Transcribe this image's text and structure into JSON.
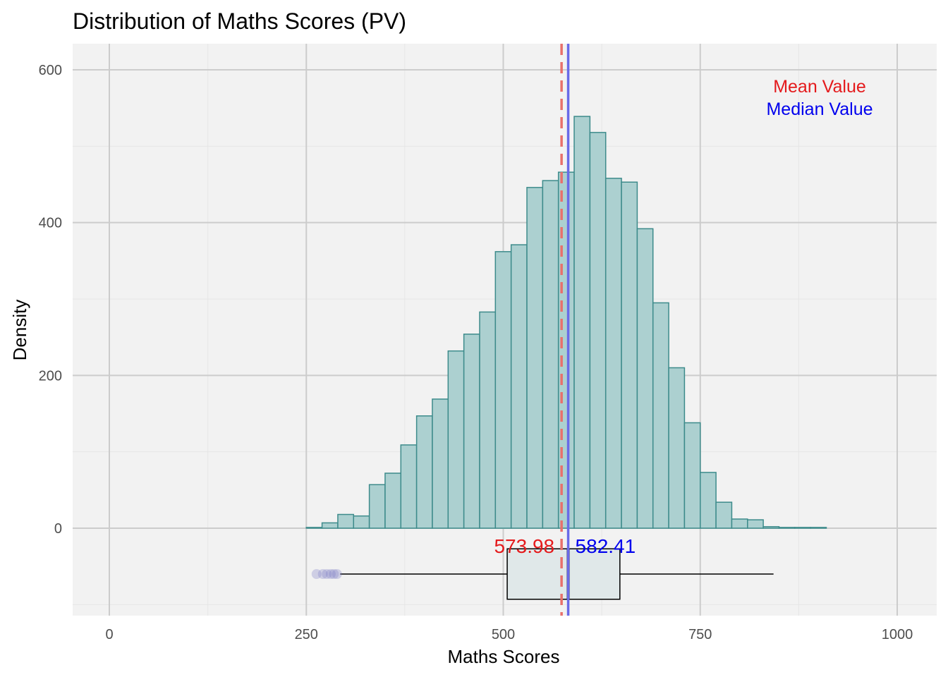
{
  "chart_data": {
    "type": "histogram",
    "title": "Distribution of Maths Scores (PV)",
    "xlabel": "Maths Scores",
    "ylabel": "Density",
    "xlim": [
      -25,
      1025
    ],
    "ylim": [
      -110,
      632
    ],
    "x_ticks": [
      0,
      250,
      500,
      750,
      1000
    ],
    "y_ticks": [
      0,
      200,
      400,
      600
    ],
    "grid": true,
    "bin_width": 20,
    "bins": [
      {
        "start": 250,
        "end": 270,
        "value": 1
      },
      {
        "start": 270,
        "end": 290,
        "value": 7
      },
      {
        "start": 290,
        "end": 310,
        "value": 18
      },
      {
        "start": 310,
        "end": 330,
        "value": 16
      },
      {
        "start": 330,
        "end": 350,
        "value": 57
      },
      {
        "start": 350,
        "end": 370,
        "value": 72
      },
      {
        "start": 370,
        "end": 390,
        "value": 109
      },
      {
        "start": 390,
        "end": 410,
        "value": 147
      },
      {
        "start": 410,
        "end": 430,
        "value": 169
      },
      {
        "start": 430,
        "end": 450,
        "value": 232
      },
      {
        "start": 450,
        "end": 470,
        "value": 254
      },
      {
        "start": 470,
        "end": 490,
        "value": 283
      },
      {
        "start": 490,
        "end": 510,
        "value": 362
      },
      {
        "start": 510,
        "end": 530,
        "value": 371
      },
      {
        "start": 530,
        "end": 550,
        "value": 446
      },
      {
        "start": 550,
        "end": 570,
        "value": 455
      },
      {
        "start": 570,
        "end": 590,
        "value": 466
      },
      {
        "start": 590,
        "end": 610,
        "value": 539
      },
      {
        "start": 610,
        "end": 630,
        "value": 518
      },
      {
        "start": 630,
        "end": 650,
        "value": 458
      },
      {
        "start": 650,
        "end": 670,
        "value": 453
      },
      {
        "start": 670,
        "end": 690,
        "value": 392
      },
      {
        "start": 690,
        "end": 710,
        "value": 295
      },
      {
        "start": 710,
        "end": 730,
        "value": 210
      },
      {
        "start": 730,
        "end": 750,
        "value": 138
      },
      {
        "start": 750,
        "end": 770,
        "value": 73
      },
      {
        "start": 770,
        "end": 790,
        "value": 34
      },
      {
        "start": 790,
        "end": 810,
        "value": 12
      },
      {
        "start": 810,
        "end": 830,
        "value": 11
      },
      {
        "start": 830,
        "end": 850,
        "value": 2
      },
      {
        "start": 850,
        "end": 870,
        "value": 1
      },
      {
        "start": 870,
        "end": 890,
        "value": 1
      },
      {
        "start": 890,
        "end": 910,
        "value": 1
      }
    ],
    "mean": {
      "value": 573.98,
      "label": "573.98",
      "legend": "Mean Value",
      "color": "#e41a1c",
      "line_color": "#e8706b"
    },
    "median": {
      "value": 582.41,
      "label": "582.41",
      "legend": "Median Value",
      "color": "#0000ee",
      "line_color": "#6a6ae8"
    },
    "boxplot": {
      "min": 293,
      "q1": 505,
      "median": 582.41,
      "q3": 648,
      "max": 843,
      "y_center": -60,
      "y_half_height": 33,
      "outliers": [
        263,
        271,
        276,
        281,
        285,
        289
      ]
    },
    "colors": {
      "bar_fill": "#acd0d0",
      "bar_stroke": "#3d8b8b",
      "panel": "#f2f2f2",
      "grid_major": "#cccccc",
      "grid_minor": "#e6e6e6",
      "box_fill": "#e0e8e9",
      "outlier": "#7a7ac4"
    }
  }
}
